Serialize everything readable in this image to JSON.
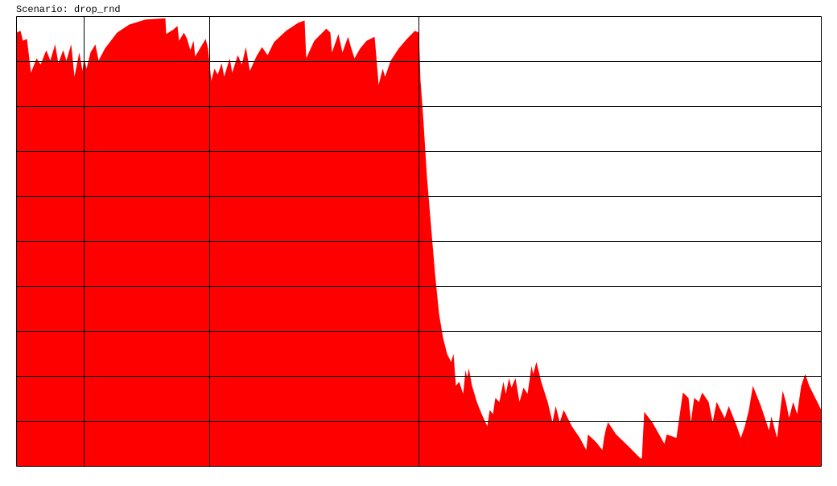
{
  "chart_data": {
    "type": "area",
    "title": "Scenario: drop_rnd",
    "color": "#ff0000",
    "grid": true,
    "xlim": [
      0,
      1000
    ],
    "ylim": [
      0,
      100
    ],
    "xticks": [
      0,
      84,
      240,
      500,
      1000
    ],
    "yticks": [
      0,
      10,
      20,
      30,
      40,
      50,
      60,
      70,
      80,
      90,
      100
    ],
    "x": [
      0,
      5,
      8,
      13,
      18,
      25,
      30,
      37,
      42,
      48,
      52,
      58,
      62,
      68,
      72,
      78,
      82,
      84,
      87,
      92,
      98,
      102,
      110,
      125,
      140,
      160,
      185,
      186,
      195,
      200,
      202,
      208,
      212,
      216,
      220,
      222,
      228,
      235,
      238,
      242,
      246,
      250,
      255,
      258,
      265,
      268,
      275,
      280,
      285,
      290,
      298,
      305,
      312,
      320,
      335,
      350,
      358,
      360,
      370,
      385,
      390,
      392,
      400,
      405,
      412,
      416,
      420,
      427,
      435,
      445,
      450,
      455,
      458,
      465,
      475,
      485,
      495,
      500,
      502,
      505,
      510,
      515,
      520,
      525,
      530,
      535,
      540,
      543,
      546,
      550,
      555,
      558,
      560,
      562,
      566,
      572,
      578,
      585,
      588,
      592,
      595,
      600,
      605,
      608,
      612,
      615,
      620,
      625,
      630,
      635,
      640,
      642,
      646,
      652,
      660,
      666,
      670,
      675,
      680,
      690,
      700,
      708,
      710,
      720,
      728,
      730,
      732,
      735,
      745,
      760,
      775,
      777,
      780,
      790,
      805,
      808,
      820,
      828,
      835,
      838,
      842,
      848,
      852,
      860,
      865,
      870,
      880,
      885,
      895,
      900,
      905,
      910,
      915,
      925,
      935,
      938,
      945,
      952,
      956,
      960,
      965,
      970,
      975,
      980,
      985,
      990,
      995,
      1000
    ],
    "values": [
      96.4,
      96.8,
      94.6,
      95.0,
      87.5,
      90.7,
      89.3,
      92.5,
      90.2,
      93.8,
      89.6,
      92.5,
      90.2,
      93.8,
      86.6,
      92.0,
      87.9,
      90.7,
      88.4,
      92.0,
      93.8,
      90.2,
      92.9,
      96.4,
      98.2,
      99.3,
      99.6,
      96.1,
      97.1,
      97.9,
      94.6,
      96.4,
      95.0,
      92.5,
      94.6,
      91.1,
      92.9,
      95.0,
      92.9,
      85.7,
      88.4,
      87.1,
      89.6,
      86.6,
      90.7,
      87.5,
      91.4,
      89.3,
      93.2,
      87.9,
      91.1,
      93.2,
      91.4,
      94.3,
      96.8,
      98.6,
      99.1,
      90.7,
      94.6,
      97.3,
      96.4,
      92.0,
      96.1,
      92.0,
      95.5,
      92.9,
      90.7,
      92.9,
      94.6,
      95.5,
      84.8,
      88.4,
      86.6,
      90.2,
      92.9,
      95.0,
      96.8,
      96.4,
      85.7,
      78.6,
      64.3,
      53.6,
      42.9,
      33.9,
      28.6,
      25.0,
      23.2,
      25.0,
      17.9,
      18.8,
      16.1,
      21.4,
      19.6,
      21.8,
      17.9,
      14.3,
      11.6,
      8.9,
      12.5,
      11.6,
      15.2,
      14.3,
      18.8,
      16.1,
      19.6,
      17.5,
      19.6,
      14.3,
      17.5,
      16.1,
      22.3,
      20.5,
      23.2,
      18.8,
      14.3,
      9.8,
      13.4,
      9.8,
      12.5,
      8.9,
      6.3,
      3.6,
      7.1,
      5.4,
      3.6,
      6.3,
      8.0,
      9.8,
      7.1,
      4.5,
      1.8,
      1.8,
      12.1,
      9.8,
      5.0,
      7.1,
      6.3,
      16.4,
      15.2,
      9.8,
      15.2,
      14.3,
      16.4,
      14.3,
      9.8,
      14.3,
      10.7,
      13.4,
      8.9,
      6.3,
      8.9,
      12.5,
      17.9,
      13.4,
      8.0,
      11.1,
      6.3,
      16.8,
      14.3,
      10.7,
      14.3,
      11.6,
      17.9,
      20.5,
      17.9,
      16.1,
      14.3,
      12.5
    ]
  }
}
